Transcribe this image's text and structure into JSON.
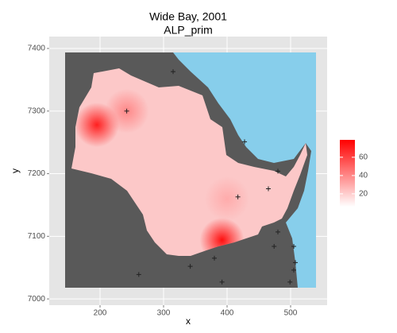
{
  "chart_data": {
    "type": "raster",
    "title": "Wide Bay, 2001",
    "subtitle": "ALP_prim",
    "x_label": "x",
    "y_label": "y",
    "xlim": [
      120,
      557.5
    ],
    "ylim": [
      6990,
      7419
    ],
    "xticks": [
      200,
      300,
      400,
      500
    ],
    "yticks": [
      7000,
      7100,
      7200,
      7300,
      7400
    ],
    "grid": true,
    "hotspots": {
      "x": [
        195,
        392,
        242,
        400
      ],
      "y": [
        7278,
        7094,
        7300,
        7160
      ],
      "values": [
        70,
        75,
        40,
        30
      ]
    },
    "stations": {
      "x": [
        315,
        427.5,
        480,
        465,
        505,
        507.5,
        505,
        499,
        474,
        342,
        261,
        242,
        380,
        392,
        417,
        480
      ],
      "y": [
        7363,
        7251,
        7204,
        7176,
        7084,
        7058,
        7046,
        7027,
        7084,
        7052,
        7039,
        7300,
        7065,
        7027,
        7163,
        7107
      ]
    },
    "colorbar": {
      "lim": [
        6,
        79
      ],
      "ticks": [
        20,
        40,
        60
      ],
      "low": "#ffffff",
      "high": "#ff0000"
    }
  }
}
